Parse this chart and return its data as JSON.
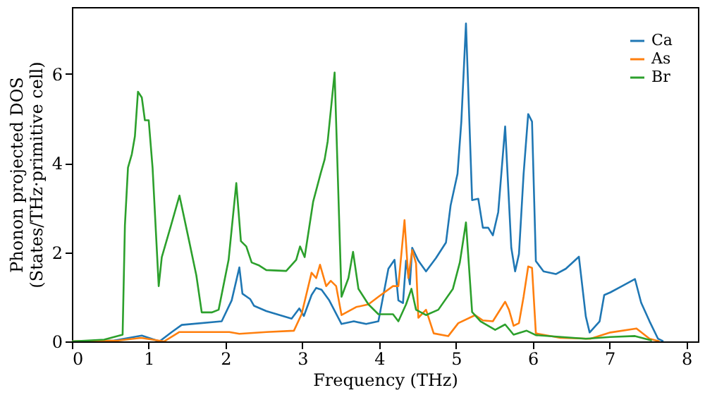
{
  "chart_data": {
    "type": "line",
    "xlabel": "Frequency (THz)",
    "ylabel": "Phonon projected DOS\n(States/THz·primitive cell)",
    "xlim": [
      0,
      8.15
    ],
    "ylim": [
      0,
      7.5
    ],
    "xticks": [
      0,
      1,
      2,
      3,
      4,
      5,
      6,
      7,
      8
    ],
    "yticks": [
      0,
      2,
      4,
      6
    ],
    "grid": false,
    "legend": "top right",
    "line_style": "solid",
    "marker": "none",
    "series": [
      {
        "name": "Ca",
        "color": "#1f77b4",
        "x": [
          0,
          0.55,
          0.91,
          1.14,
          1.3,
          1.43,
          1.95,
          2.08,
          2.18,
          2.22,
          2.32,
          2.37,
          2.53,
          2.86,
          2.96,
          3.02,
          3.12,
          3.18,
          3.25,
          3.35,
          3.51,
          3.67,
          3.83,
          3.99,
          4.12,
          4.2,
          4.25,
          4.31,
          4.35,
          4.4,
          4.43,
          4.51,
          4.61,
          4.74,
          4.87,
          4.93,
          5.02,
          5.07,
          5.13,
          5.21,
          5.29,
          5.35,
          5.42,
          5.48,
          5.55,
          5.64,
          5.72,
          5.77,
          5.82,
          5.88,
          5.94,
          5.99,
          6.04,
          6.14,
          6.3,
          6.43,
          6.6,
          6.69,
          6.74,
          6.87,
          6.93,
          7.01,
          7.14,
          7.33,
          7.41,
          7.52,
          7.63,
          7.7
        ],
        "values": [
          0,
          0.02,
          0.13,
          0.0,
          0.21,
          0.37,
          0.45,
          0.92,
          1.66,
          1.07,
          0.95,
          0.8,
          0.68,
          0.51,
          0.74,
          0.57,
          1.04,
          1.2,
          1.16,
          0.92,
          0.39,
          0.45,
          0.39,
          0.45,
          1.63,
          1.83,
          0.92,
          0.86,
          1.81,
          1.28,
          2.1,
          1.81,
          1.57,
          1.87,
          2.22,
          3.05,
          3.76,
          4.94,
          7.13,
          3.17,
          3.2,
          2.55,
          2.55,
          2.38,
          2.9,
          4.82,
          2.1,
          1.57,
          1.96,
          3.75,
          5.1,
          4.93,
          1.8,
          1.57,
          1.51,
          1.63,
          1.9,
          0.56,
          0.2,
          0.45,
          1.04,
          1.1,
          1.22,
          1.4,
          0.87,
          0.45,
          0.06,
          0
        ]
      },
      {
        "name": "As",
        "color": "#ff7f0e",
        "x": [
          0,
          0.6,
          0.9,
          1.2,
          1.4,
          2.05,
          2.18,
          2.53,
          2.89,
          2.99,
          3.12,
          3.18,
          3.23,
          3.31,
          3.37,
          3.44,
          3.51,
          3.7,
          3.86,
          3.99,
          4.18,
          4.25,
          4.33,
          4.38,
          4.43,
          4.48,
          4.51,
          4.61,
          4.71,
          4.9,
          5.03,
          5.25,
          5.35,
          5.48,
          5.64,
          5.69,
          5.75,
          5.82,
          5.88,
          5.94,
          5.99,
          6.04,
          6.36,
          6.75,
          7.01,
          7.35,
          7.52,
          7.65
        ],
        "values": [
          0,
          0.02,
          0.08,
          0.0,
          0.21,
          0.21,
          0.17,
          0.21,
          0.24,
          0.61,
          1.54,
          1.42,
          1.72,
          1.24,
          1.36,
          1.24,
          0.59,
          0.77,
          0.83,
          1.0,
          1.24,
          1.24,
          2.72,
          1.42,
          2.05,
          1.75,
          0.53,
          0.71,
          0.18,
          0.12,
          0.41,
          0.59,
          0.47,
          0.45,
          0.89,
          0.71,
          0.35,
          0.41,
          1.0,
          1.68,
          1.65,
          0.18,
          0.08,
          0.06,
          0.2,
          0.29,
          0.06,
          0
        ]
      },
      {
        "name": "Br",
        "color": "#2ca02c",
        "x": [
          0,
          0.42,
          0.66,
          0.69,
          0.73,
          0.78,
          0.82,
          0.86,
          0.91,
          0.95,
          1.0,
          1.05,
          1.13,
          1.17,
          1.29,
          1.4,
          1.52,
          1.62,
          1.69,
          1.82,
          1.91,
          2.04,
          2.14,
          2.2,
          2.27,
          2.34,
          2.43,
          2.53,
          2.79,
          2.92,
          2.97,
          3.03,
          3.14,
          3.24,
          3.29,
          3.33,
          3.42,
          3.51,
          3.6,
          3.66,
          3.73,
          3.86,
          3.99,
          4.18,
          4.25,
          4.35,
          4.42,
          4.48,
          4.61,
          4.77,
          4.96,
          5.05,
          5.13,
          5.21,
          5.32,
          5.51,
          5.64,
          5.75,
          5.92,
          6.04,
          6.69,
          7.01,
          7.33,
          7.55
        ],
        "values": [
          0,
          0.04,
          0.15,
          2.6,
          3.9,
          4.2,
          4.6,
          5.6,
          5.47,
          4.96,
          4.96,
          3.9,
          1.24,
          1.89,
          2.6,
          3.27,
          2.3,
          1.48,
          0.65,
          0.65,
          0.71,
          1.83,
          3.55,
          2.25,
          2.13,
          1.77,
          1.71,
          1.6,
          1.58,
          1.83,
          2.13,
          1.89,
          3.13,
          3.78,
          4.08,
          4.49,
          6.03,
          1.0,
          1.42,
          2.01,
          1.18,
          0.83,
          0.61,
          0.61,
          0.45,
          0.83,
          1.18,
          0.71,
          0.59,
          0.71,
          1.18,
          1.77,
          2.67,
          0.66,
          0.45,
          0.26,
          0.38,
          0.15,
          0.24,
          0.14,
          0.06,
          0.1,
          0.12,
          0.02
        ]
      }
    ]
  }
}
